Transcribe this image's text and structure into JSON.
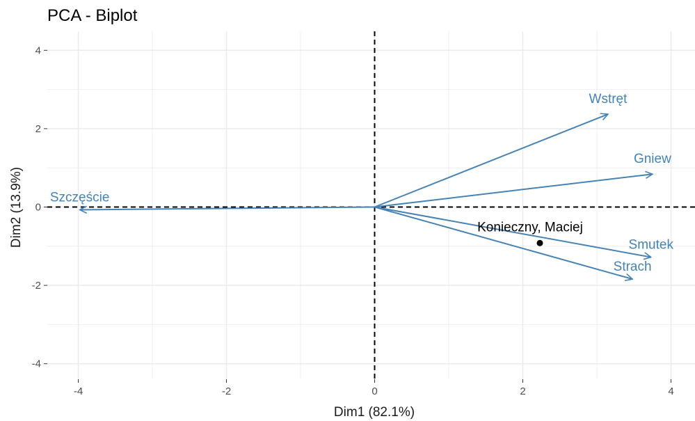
{
  "chart_data": {
    "type": "scatter",
    "title": "PCA - Biplot",
    "xlabel": "Dim1 (82.1%)",
    "ylabel": "Dim2 (13.9%)",
    "xlim": [
      -4.4,
      4.8
    ],
    "ylim": [
      -4.4,
      4.45
    ],
    "xticks": [
      -4,
      -2,
      0,
      2,
      4
    ],
    "yticks": [
      -4,
      -2,
      0,
      2,
      4
    ],
    "xtick_labels": [
      "-4",
      "-2",
      "0",
      "2",
      "4"
    ],
    "ytick_labels": [
      "-4",
      "-2",
      "0",
      "2",
      "4"
    ],
    "grid": true,
    "variables": [
      {
        "name": "Wstręt",
        "x": 3.15,
        "y": 2.37
      },
      {
        "name": "Gniew",
        "x": 3.75,
        "y": 0.84
      },
      {
        "name": "Szczęście",
        "x": -3.98,
        "y": -0.07
      },
      {
        "name": "Smutek",
        "x": 3.73,
        "y": -1.28
      },
      {
        "name": "Strach",
        "x": 3.48,
        "y": -1.84
      }
    ],
    "individuals": [
      {
        "name": "Konieczny, Maciej",
        "x": 2.23,
        "y": -0.92
      }
    ],
    "colors": {
      "variables": "#4682B4",
      "individuals": "#000000",
      "grid": "#ebebeb"
    }
  }
}
